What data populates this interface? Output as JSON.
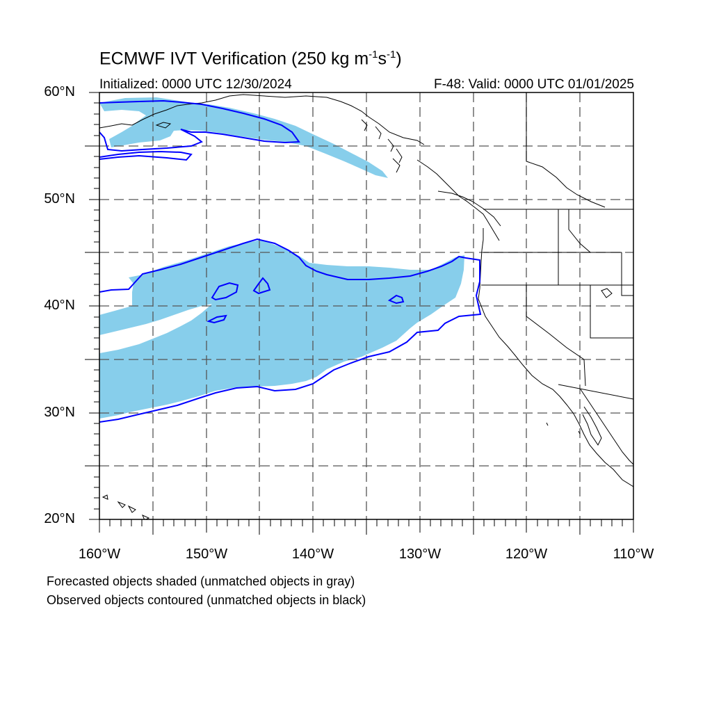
{
  "title": {
    "prefix": "ECMWF IVT Verification (250 kg m",
    "exp1": "-1",
    "mid": "s",
    "exp2": "-1",
    "suffix": ")"
  },
  "subtitle_left": "Initialized: 0000 UTC 12/30/2024",
  "subtitle_right": "F-48: Valid: 0000 UTC 01/01/2025",
  "lat_labels": [
    "60°N",
    "50°N",
    "40°N",
    "30°N",
    "20°N"
  ],
  "lon_labels": [
    "160°W",
    "150°W",
    "140°W",
    "130°W",
    "120°W",
    "110°W"
  ],
  "footnote_1": "Forecasted objects shaded (unmatched objects in gray)",
  "footnote_2": "Observed objects contoured (unmatched objects in black)",
  "colors": {
    "forecast_fill": "#87ceeb",
    "observed_contour": "#0000ff",
    "coastline": "#000000",
    "grid": "#555555"
  }
}
